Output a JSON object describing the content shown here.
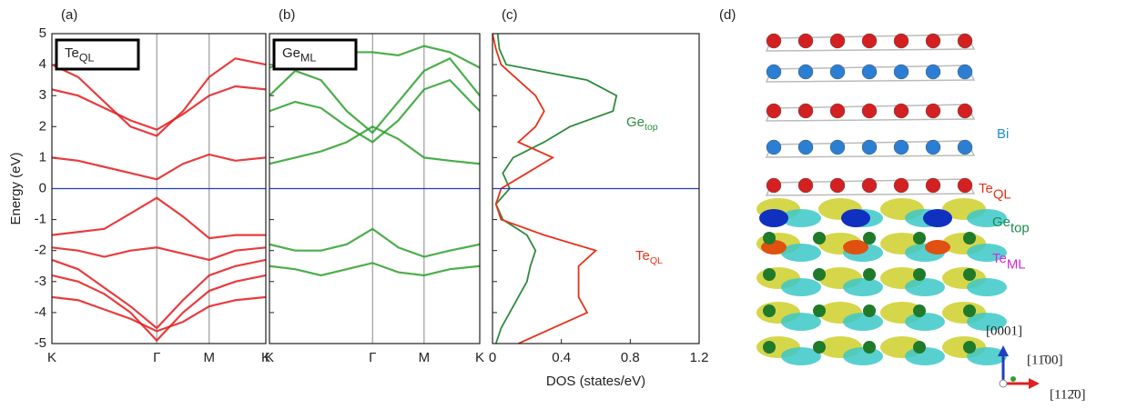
{
  "chart_data": [
    {
      "type": "bands",
      "panel_label": "(a)",
      "ylabel": "Energy (eV)",
      "inset_label": {
        "main": "Te",
        "sub": "QL"
      },
      "color": "#e41a1c",
      "ylim": [
        -5,
        5
      ],
      "yticks": [
        -5,
        -4,
        -3,
        -2,
        -1,
        0,
        1,
        2,
        3,
        4,
        5
      ],
      "xlim": [
        0,
        2.04
      ],
      "xticks": [
        {
          "value": 0,
          "label": "K"
        },
        {
          "value": 1,
          "label": "Γ"
        },
        {
          "value": 1.5,
          "label": "M"
        },
        {
          "value": 2.04,
          "label": "K"
        }
      ],
      "fermi_level": 0,
      "x": [
        0,
        0.25,
        0.5,
        0.75,
        1,
        1.25,
        1.5,
        1.75,
        2.04
      ],
      "bands": [
        [
          4,
          3.6,
          2.8,
          2.0,
          1.7,
          2.5,
          3.6,
          4.2,
          4
        ],
        [
          3.2,
          3.0,
          2.6,
          2.2,
          1.9,
          2.4,
          3.0,
          3.3,
          3.2
        ],
        [
          1.0,
          0.9,
          0.7,
          0.5,
          0.3,
          0.8,
          1.1,
          0.9,
          1.0
        ],
        [
          -1.5,
          -1.4,
          -1.3,
          -0.8,
          -0.3,
          -0.9,
          -1.6,
          -1.5,
          -1.5
        ],
        [
          -1.9,
          -2.0,
          -2.2,
          -2.0,
          -1.9,
          -2.1,
          -2.3,
          -2.0,
          -1.9
        ],
        [
          -2.3,
          -2.6,
          -3.2,
          -3.8,
          -4.5,
          -3.6,
          -2.8,
          -2.5,
          -2.3
        ],
        [
          -2.8,
          -3.0,
          -3.4,
          -4.0,
          -4.9,
          -4.0,
          -3.3,
          -3.0,
          -2.8
        ],
        [
          -3.5,
          -3.6,
          -3.9,
          -4.2,
          -4.6,
          -4.3,
          -3.8,
          -3.6,
          -3.5
        ]
      ]
    },
    {
      "type": "bands",
      "panel_label": "(b)",
      "inset_label": {
        "main": "Ge",
        "sub": "ML"
      },
      "color": "#2ca02c",
      "ylim": [
        -5,
        5
      ],
      "yticks": [
        -5,
        -4,
        -3,
        -2,
        -1,
        0,
        1,
        2,
        3,
        4,
        5
      ],
      "xlim": [
        0,
        2.04
      ],
      "xticks": [
        {
          "value": 0,
          "label": "K"
        },
        {
          "value": 1,
          "label": "Γ"
        },
        {
          "value": 1.5,
          "label": "M"
        },
        {
          "value": 2.04,
          "label": "K"
        }
      ],
      "fermi_level": 0,
      "x": [
        0,
        0.25,
        0.5,
        0.75,
        1,
        1.25,
        1.5,
        1.75,
        2.04
      ],
      "bands": [
        [
          3.9,
          4.2,
          4.5,
          4.4,
          4.4,
          4.3,
          4.6,
          4.4,
          3.9
        ],
        [
          3,
          3.8,
          3.5,
          2.5,
          1.8,
          2.8,
          3.8,
          4.2,
          3
        ],
        [
          2.5,
          2.8,
          2.6,
          2.0,
          1.5,
          2.2,
          3.2,
          3.5,
          2.5
        ],
        [
          0.8,
          1.0,
          1.2,
          1.5,
          2.0,
          1.6,
          1.0,
          0.9,
          0.8
        ],
        [
          -1.8,
          -2.0,
          -2.0,
          -1.8,
          -1.3,
          -1.9,
          -2.2,
          -2.0,
          -1.8
        ],
        [
          -2.5,
          -2.6,
          -2.8,
          -2.6,
          -2.4,
          -2.7,
          -2.8,
          -2.6,
          -2.5
        ]
      ]
    },
    {
      "type": "dos",
      "panel_label": "(c)",
      "xlabel": "DOS (states/eV)",
      "ylim": [
        -5,
        5
      ],
      "yticks": [
        -5,
        -4,
        -3,
        -2,
        -1,
        0,
        1,
        2,
        3,
        4,
        5
      ],
      "xlim": [
        0,
        1.2
      ],
      "xticks": [
        0,
        0.4,
        0.8,
        1.2
      ],
      "fermi_level": 0,
      "y": [
        -5,
        -4.5,
        -4,
        -3.5,
        -3,
        -2.5,
        -2,
        -1.5,
        -1,
        -0.5,
        0,
        0.5,
        1,
        1.5,
        2,
        2.5,
        3,
        3.5,
        4,
        4.5,
        5
      ],
      "series": [
        {
          "name": {
            "main": "Ge",
            "sub": "top"
          },
          "color": "#2e8b3e",
          "values": [
            0.02,
            0.05,
            0.1,
            0.15,
            0.2,
            0.22,
            0.25,
            0.2,
            0.06,
            0.02,
            0.1,
            0.06,
            0.12,
            0.3,
            0.45,
            0.7,
            0.72,
            0.55,
            0.08,
            0.04,
            0.03
          ]
        },
        {
          "name": {
            "main": "Te",
            "sub": "QL"
          },
          "color": "#e8311a",
          "values": [
            0.15,
            0.35,
            0.55,
            0.5,
            0.5,
            0.5,
            0.6,
            0.3,
            0.05,
            0.02,
            0.05,
            0.2,
            0.35,
            0.15,
            0.25,
            0.3,
            0.25,
            0.15,
            0.05,
            0.02,
            0.0
          ]
        }
      ]
    }
  ],
  "structure": {
    "panel_label": "(d)",
    "labels": [
      {
        "main": "Bi",
        "sub": "",
        "color": "#1f8fd6"
      },
      {
        "main": "Te",
        "sub": "QL",
        "color": "#e8311a"
      },
      {
        "main": "Ge",
        "sub": "top",
        "color": "#1a8a50"
      },
      {
        "main": "Te",
        "sub": "ML",
        "color": "#d62ad6"
      }
    ],
    "axes": [
      "[0001]",
      "[11̄00]",
      "[112̄0]"
    ]
  }
}
